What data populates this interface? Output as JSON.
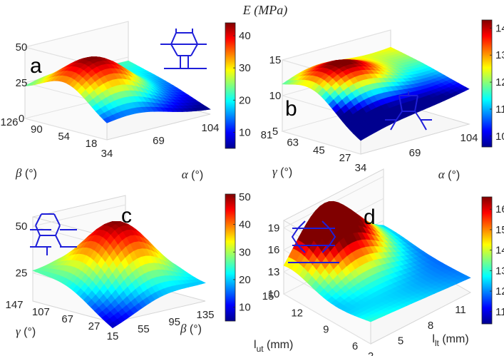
{
  "figure_title": "E (MPa)",
  "chart_data": [
    {
      "panel": "a",
      "type": "surface3d",
      "xlabel": "α (°)",
      "ylabel": "β (°)",
      "zlabel": "",
      "x_ticks": [
        "34",
        "69",
        "104"
      ],
      "y_ticks": [
        "18",
        "54",
        "90",
        "126"
      ],
      "z_ticks": [
        "0",
        "25",
        "50"
      ],
      "xlim": [
        34,
        104
      ],
      "ylim": [
        18,
        126
      ],
      "zlim": [
        0,
        50
      ],
      "colorbar_ticks": [
        "10",
        "20",
        "30",
        "40"
      ],
      "colorbar_range": [
        5,
        44
      ],
      "peak": {
        "x": 54,
        "y": 72,
        "z": 44
      },
      "corner_values": {
        "x34_y18": 7,
        "x104_y18": 3,
        "x34_y126": 18,
        "x104_y126": 22
      }
    },
    {
      "panel": "b",
      "type": "surface3d",
      "xlabel": "α (°)",
      "ylabel": "γ (°)",
      "zlabel": "",
      "x_ticks": [
        "34",
        "69",
        "104"
      ],
      "y_ticks": [
        "27",
        "45",
        "63",
        "81"
      ],
      "z_ticks": [
        "5",
        "10",
        "15"
      ],
      "xlim": [
        34,
        104
      ],
      "ylim": [
        27,
        81
      ],
      "zlim": [
        5,
        15
      ],
      "colorbar_ticks": [
        "10",
        "11",
        "12",
        "13",
        "14"
      ],
      "colorbar_range": [
        9.6,
        14.3
      ],
      "peak": {
        "x": 52,
        "y": 60,
        "z": 14.3
      },
      "corner_values": {
        "x34_y27": 6.5,
        "x104_y27": 9.9,
        "x34_y81": 10.2,
        "x104_y81": 12.5
      }
    },
    {
      "panel": "c",
      "type": "surface3d",
      "xlabel": "β (°)",
      "ylabel": "γ (°)",
      "zlabel": "",
      "x_ticks": [
        "15",
        "55",
        "95",
        "135"
      ],
      "y_ticks": [
        "27",
        "67",
        "107",
        "147"
      ],
      "z_ticks": [
        "25",
        "50"
      ],
      "xlim": [
        15,
        135
      ],
      "ylim": [
        27,
        147
      ],
      "zlim": [
        10,
        55
      ],
      "colorbar_ticks": [
        "10",
        "20",
        "30",
        "40",
        "50"
      ],
      "colorbar_range": [
        5,
        51
      ],
      "peak": {
        "x": 80,
        "y": 95,
        "z": 51
      },
      "corner_values": {
        "x15_y27": 6,
        "x135_y27": 18,
        "x15_y147": 24,
        "x135_y147": 14
      }
    },
    {
      "panel": "d",
      "type": "surface3d",
      "xlabel": "l_lt (mm)",
      "ylabel": "l_ut (mm)",
      "zlabel": "",
      "x_ticks": [
        "2",
        "5",
        "8",
        "11"
      ],
      "y_ticks": [
        "6",
        "9",
        "12",
        "15"
      ],
      "z_ticks": [
        "10",
        "13",
        "16",
        "19"
      ],
      "xlim": [
        2,
        12
      ],
      "ylim": [
        6,
        15
      ],
      "zlim": [
        10,
        20
      ],
      "colorbar_ticks": [
        "11",
        "12",
        "13",
        "14",
        "15",
        "16"
      ],
      "colorbar_range": [
        10.4,
        16.6
      ],
      "peak": {
        "x": 6,
        "y": 15,
        "z": 19.5
      },
      "corner_values": {
        "x2_y6": 13,
        "x12_y6": 12,
        "x2_y15": 10.3,
        "x12_y15": 11.2
      }
    }
  ],
  "panel_labels": [
    "a",
    "b",
    "c",
    "d"
  ]
}
